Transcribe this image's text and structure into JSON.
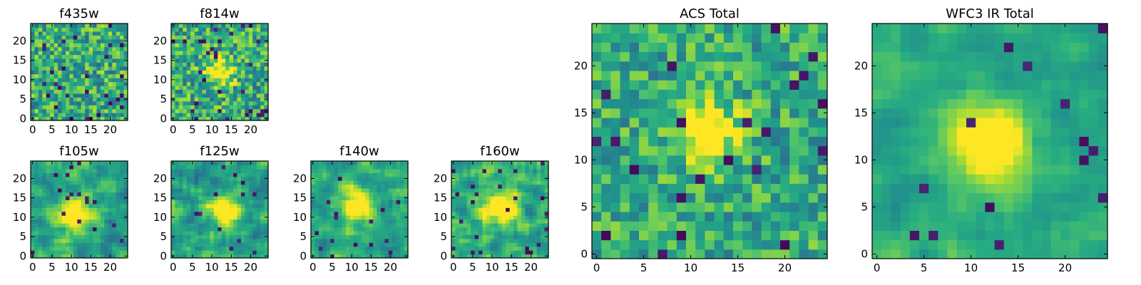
{
  "chart_data": {
    "type": "heatmap",
    "colormap": "viridis",
    "grid_size": 25,
    "panels": [
      {
        "id": "f435w",
        "title": "f435w",
        "xlim": [
          0,
          24
        ],
        "ylim": [
          0,
          24
        ],
        "xticks": [
          0,
          5,
          10,
          15,
          20
        ],
        "yticks": [
          0,
          5,
          10,
          15,
          20
        ],
        "source_center": null,
        "noise_level": 0.55,
        "peak": 0.2,
        "sigma": 3,
        "smooth": false,
        "dark_fraction": 0.06
      },
      {
        "id": "f814w",
        "title": "f814w",
        "xlim": [
          0,
          24
        ],
        "ylim": [
          0,
          24
        ],
        "xticks": [
          0,
          5,
          10,
          15,
          20
        ],
        "yticks": [
          0,
          5,
          10,
          15,
          20
        ],
        "source_center": [
          12,
          12
        ],
        "noise_level": 0.55,
        "peak": 0.55,
        "sigma": 2.5,
        "smooth": false,
        "dark_fraction": 0.06
      },
      {
        "id": "f105w",
        "title": "f105w",
        "xlim": [
          0,
          24
        ],
        "ylim": [
          0,
          24
        ],
        "xticks": [
          0,
          5,
          10,
          15,
          20
        ],
        "yticks": [
          0,
          5,
          10,
          15,
          20
        ],
        "source_center": [
          11,
          11
        ],
        "noise_level": 0.5,
        "peak": 0.6,
        "sigma": 3,
        "smooth": true,
        "dark_fraction": 0.03
      },
      {
        "id": "f125w",
        "title": "f125w",
        "xlim": [
          0,
          24
        ],
        "ylim": [
          0,
          24
        ],
        "xticks": [
          0,
          5,
          10,
          15,
          20
        ],
        "yticks": [
          0,
          5,
          10,
          15,
          20
        ],
        "source_center": [
          13,
          12
        ],
        "noise_level": 0.55,
        "peak": 0.5,
        "sigma": 3,
        "smooth": true,
        "dark_fraction": 0.03
      },
      {
        "id": "f140w",
        "title": "f140w",
        "xlim": [
          0,
          24
        ],
        "ylim": [
          0,
          24
        ],
        "xticks": [
          0,
          5,
          10,
          15,
          20
        ],
        "yticks": [
          0,
          5,
          10,
          15,
          20
        ],
        "source_center": [
          11,
          13
        ],
        "noise_level": 0.45,
        "peak": 0.6,
        "sigma": 3,
        "smooth": true,
        "dark_fraction": 0.02
      },
      {
        "id": "f160w",
        "title": "f160w",
        "xlim": [
          0,
          24
        ],
        "ylim": [
          0,
          24
        ],
        "xticks": [
          0,
          5,
          10,
          15,
          20
        ],
        "yticks": [
          0,
          5,
          10,
          15,
          20
        ],
        "source_center": [
          12,
          12
        ],
        "noise_level": 0.5,
        "peak": 0.6,
        "sigma": 3,
        "smooth": true,
        "dark_fraction": 0.03
      },
      {
        "id": "acs_total",
        "title": "ACS Total",
        "xlim": [
          0,
          24
        ],
        "ylim": [
          0,
          24
        ],
        "xticks": [
          0,
          5,
          10,
          15,
          20
        ],
        "yticks": [
          0,
          5,
          10,
          15,
          20
        ],
        "source_center": [
          12,
          13
        ],
        "noise_level": 0.45,
        "peak": 0.45,
        "sigma": 2.5,
        "smooth": false,
        "dark_fraction": 0.03
      },
      {
        "id": "wfc3_ir_total",
        "title": "WFC3 IR Total",
        "xlim": [
          0,
          24
        ],
        "ylim": [
          0,
          24
        ],
        "xticks": [
          0,
          5,
          10,
          15,
          20
        ],
        "yticks": [
          0,
          5,
          10,
          15,
          20
        ],
        "source_center": [
          12,
          12
        ],
        "noise_level": 0.3,
        "peak": 0.65,
        "sigma": 3,
        "smooth": true,
        "dark_fraction": 0.015
      }
    ]
  }
}
